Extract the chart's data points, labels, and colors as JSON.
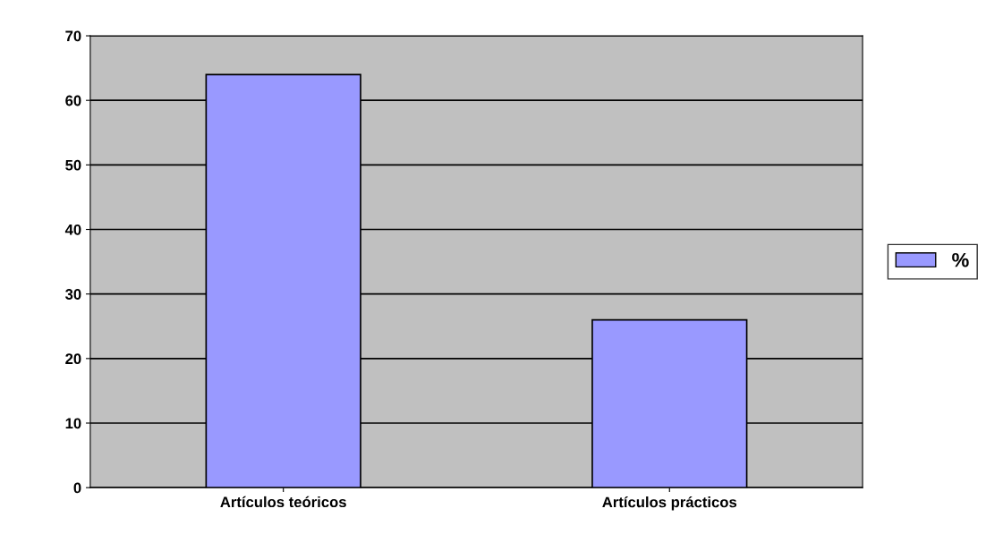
{
  "chart_data": {
    "type": "bar",
    "categories": [
      "Artículos teóricos",
      "Artículos prácticos"
    ],
    "series": [
      {
        "name": "%",
        "color": "#9999ff",
        "values": [
          64,
          26
        ]
      }
    ],
    "ylim": [
      0,
      70
    ],
    "yticks": [
      0,
      10,
      20,
      30,
      40,
      50,
      60,
      70
    ],
    "grid": "y",
    "legend": "right"
  }
}
